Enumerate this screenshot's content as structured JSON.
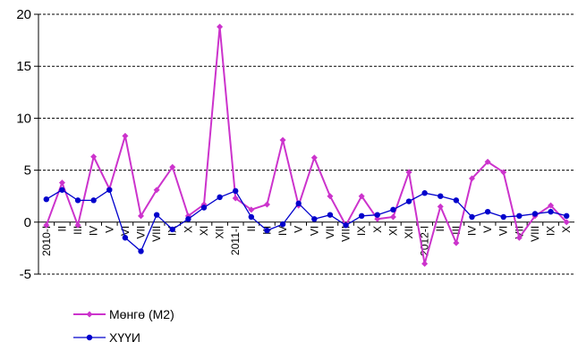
{
  "chart_data": {
    "type": "line",
    "title": "",
    "xlabel": "",
    "ylabel": "",
    "ylim": [
      -5,
      20
    ],
    "yticks": [
      -5,
      0,
      5,
      10,
      15,
      20
    ],
    "grid": "horizontal dashed",
    "legend_position": "bottom-left",
    "categories": [
      "2010-I",
      "II",
      "III",
      "IV",
      "V",
      "VI",
      "VII",
      "VIII",
      "IX",
      "X",
      "XI",
      "XII",
      "2011-I",
      "II",
      "III",
      "IV",
      "V",
      "VI",
      "VII",
      "VIII",
      "IX",
      "X",
      "XI",
      "XII",
      "2012-I",
      "II",
      "III",
      "IV",
      "V",
      "VI",
      "VII",
      "VIII",
      "IX",
      "X"
    ],
    "series": [
      {
        "name": "Мөнгө (М2)",
        "color": "#cc33cc",
        "marker": "diamond",
        "values": [
          -0.3,
          3.8,
          -0.3,
          6.3,
          3.2,
          8.3,
          0.6,
          3.1,
          5.3,
          0.6,
          1.7,
          18.8,
          2.3,
          1.2,
          1.7,
          7.9,
          1.6,
          6.2,
          2.5,
          -0.3,
          2.5,
          0.3,
          0.5,
          4.8,
          -4.0,
          1.5,
          -2.0,
          4.2,
          5.8,
          4.8,
          -1.5,
          0.6,
          1.6,
          0.0
        ]
      },
      {
        "name": "ХҮҮИ",
        "color": "#0000cc",
        "marker": "circle",
        "values": [
          2.2,
          3.1,
          2.1,
          2.1,
          3.1,
          -1.5,
          -2.8,
          0.7,
          -0.7,
          0.3,
          1.4,
          2.4,
          3.0,
          0.5,
          -0.8,
          -0.2,
          1.8,
          0.3,
          0.7,
          -0.3,
          0.6,
          0.7,
          1.2,
          2.0,
          2.8,
          2.5,
          2.1,
          0.5,
          1.0,
          0.5,
          0.6,
          0.8,
          1.0,
          0.6
        ]
      }
    ]
  }
}
